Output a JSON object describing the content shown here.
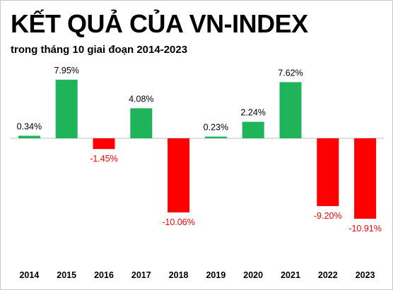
{
  "chart_data": {
    "type": "bar",
    "title": "KẾT QUẢ CỦA VN-INDEX",
    "subtitle": "trong tháng 10 giai đoạn 2014-2023",
    "categories": [
      "2014",
      "2015",
      "2016",
      "2017",
      "2018",
      "2019",
      "2020",
      "2021",
      "2022",
      "2023"
    ],
    "values": [
      0.34,
      7.95,
      -1.45,
      4.08,
      -10.06,
      0.23,
      2.24,
      7.62,
      -9.2,
      -10.91
    ],
    "value_labels": [
      "0.34%",
      "7.95%",
      "-1.45%",
      "4.08%",
      "-10.06%",
      "0.23%",
      "2.24%",
      "7.62%",
      "-9.20%",
      "-10.91%"
    ],
    "xlabel": "",
    "ylabel": "",
    "ylim": [
      -12.5,
      11.2
    ],
    "grid": false,
    "legend": "none",
    "colors": {
      "positive": "#1fb45a",
      "negative": "#ff0000",
      "positive_label": "#000000",
      "negative_label": "#ff0000",
      "axis": "#bfbfbf"
    }
  }
}
